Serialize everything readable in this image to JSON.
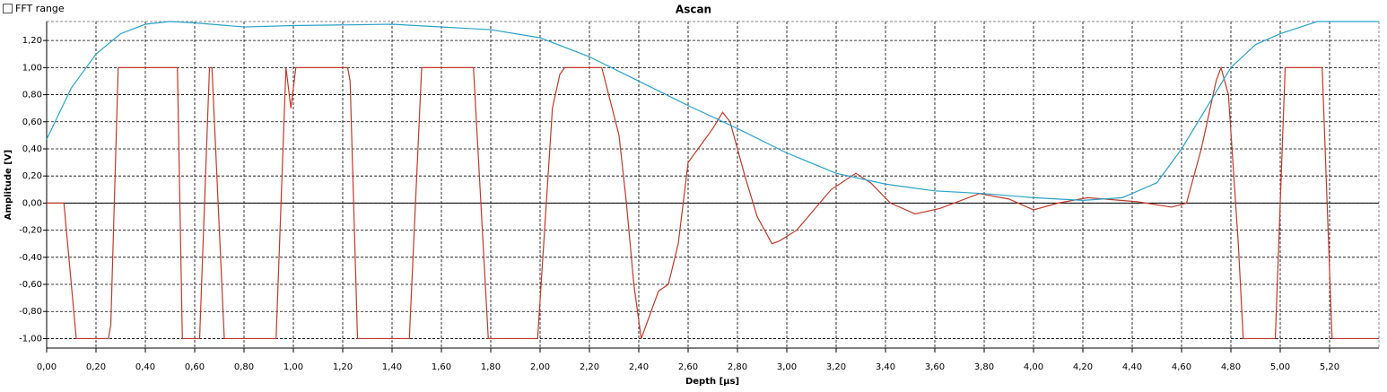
{
  "ui": {
    "checkbox_label": "FFT range"
  },
  "chart_data": {
    "type": "line",
    "title": "Ascan",
    "x_label": "Depth [µs]",
    "y_label": "Amplitude [V]",
    "xlim": [
      0,
      5.4
    ],
    "ylim": [
      -1.07,
      1.34
    ],
    "grid": true,
    "xticks": [
      {
        "value": 0,
        "label": "0,00"
      },
      {
        "value": 0.2,
        "label": "0,20"
      },
      {
        "value": 0.4,
        "label": "0,40"
      },
      {
        "value": 0.6,
        "label": "0,60"
      },
      {
        "value": 0.8,
        "label": "0,80"
      },
      {
        "value": 1,
        "label": "1,00"
      },
      {
        "value": 1.2,
        "label": "1,20"
      },
      {
        "value": 1.4,
        "label": "1,40"
      },
      {
        "value": 1.6,
        "label": "1,60"
      },
      {
        "value": 1.8,
        "label": "1,80"
      },
      {
        "value": 2,
        "label": "2,00"
      },
      {
        "value": 2.2,
        "label": "2,20"
      },
      {
        "value": 2.4,
        "label": "2,40"
      },
      {
        "value": 2.6,
        "label": "2,60"
      },
      {
        "value": 2.8,
        "label": "2,80"
      },
      {
        "value": 3,
        "label": "3,00"
      },
      {
        "value": 3.2,
        "label": "3,20"
      },
      {
        "value": 3.4,
        "label": "3,40"
      },
      {
        "value": 3.6,
        "label": "3,60"
      },
      {
        "value": 3.8,
        "label": "3,80"
      },
      {
        "value": 4,
        "label": "4,00"
      },
      {
        "value": 4.2,
        "label": "4,20"
      },
      {
        "value": 4.4,
        "label": "4,40"
      },
      {
        "value": 4.6,
        "label": "4,60"
      },
      {
        "value": 4.8,
        "label": "4,80"
      },
      {
        "value": 5,
        "label": "5,00"
      },
      {
        "value": 5.2,
        "label": "5,20"
      }
    ],
    "yticks": [
      {
        "value": -1,
        "label": "-1,00"
      },
      {
        "value": -0.8,
        "label": "-0,80"
      },
      {
        "value": -0.6,
        "label": "-0,60"
      },
      {
        "value": -0.4,
        "label": "-0,40"
      },
      {
        "value": -0.2,
        "label": "-0,20"
      },
      {
        "value": 0,
        "label": "0,00"
      },
      {
        "value": 0.2,
        "label": "0,20"
      },
      {
        "value": 0.4,
        "label": "0,40"
      },
      {
        "value": 0.6,
        "label": "0,60"
      },
      {
        "value": 0.8,
        "label": "0,80"
      },
      {
        "value": 1,
        "label": "1,00"
      },
      {
        "value": 1.2,
        "label": "1,20"
      }
    ],
    "series": [
      {
        "color": "#c0392b",
        "x": [
          0,
          0.07,
          0.12,
          0.25,
          0.26,
          0.29,
          0.53,
          0.55,
          0.62,
          0.66,
          0.67,
          0.72,
          0.93,
          0.97,
          0.99,
          1.01,
          1.22,
          1.23,
          1.26,
          1.47,
          1.52,
          1.73,
          1.79,
          1.99,
          2.05,
          2.08,
          2.1,
          2.25,
          2.32,
          2.35,
          2.38,
          2.41,
          2.45,
          2.48,
          2.52,
          2.56,
          2.6,
          2.64,
          2.7,
          2.74,
          2.77,
          2.83,
          2.88,
          2.94,
          2.97,
          3.04,
          3.18,
          3.28,
          3.34,
          3.42,
          3.52,
          3.62,
          3.78,
          3.9,
          4,
          4.1,
          4.22,
          4.42,
          4.56,
          4.62,
          4.68,
          4.74,
          4.76,
          4.79,
          4.83,
          4.85,
          4.98,
          5.02,
          5.17,
          5.21,
          5.4
        ],
        "values": [
          0,
          0,
          -1,
          -1,
          -0.9,
          1,
          1,
          -1,
          -1,
          1,
          1,
          -1,
          -1,
          1,
          0.7,
          1,
          1,
          0.9,
          -1,
          -1,
          1,
          1,
          -1,
          -1,
          0.7,
          0.95,
          1,
          1,
          0.5,
          0,
          -0.6,
          -1,
          -0.8,
          -0.65,
          -0.6,
          -0.3,
          0.3,
          0.4,
          0.55,
          0.67,
          0.6,
          0.2,
          -0.1,
          -0.3,
          -0.28,
          -0.2,
          0.1,
          0.22,
          0.15,
          0,
          -0.08,
          -0.04,
          0.07,
          0.03,
          -0.05,
          0,
          0.04,
          0.01,
          -0.03,
          0,
          0.4,
          0.9,
          1,
          0.8,
          -0.3,
          -1,
          -1,
          1,
          1,
          -1,
          -1
        ]
      },
      {
        "color": "#29a3c8",
        "x": [
          0,
          0.1,
          0.2,
          0.3,
          0.4,
          0.5,
          0.6,
          0.8,
          1,
          1.4,
          1.8,
          2,
          2.2,
          2.4,
          2.6,
          2.8,
          3,
          3.2,
          3.4,
          3.6,
          3.8,
          4,
          4.2,
          4.36,
          4.5,
          4.6,
          4.7,
          4.8,
          4.9,
          5,
          5.1,
          5.15,
          5.4
        ],
        "values": [
          0.47,
          0.85,
          1.1,
          1.25,
          1.32,
          1.34,
          1.33,
          1.3,
          1.31,
          1.32,
          1.28,
          1.22,
          1.08,
          0.9,
          0.72,
          0.55,
          0.37,
          0.22,
          0.14,
          0.09,
          0.07,
          0.04,
          0.02,
          0.04,
          0.15,
          0.4,
          0.7,
          1,
          1.17,
          1.25,
          1.31,
          1.34,
          1.34
        ]
      }
    ]
  }
}
